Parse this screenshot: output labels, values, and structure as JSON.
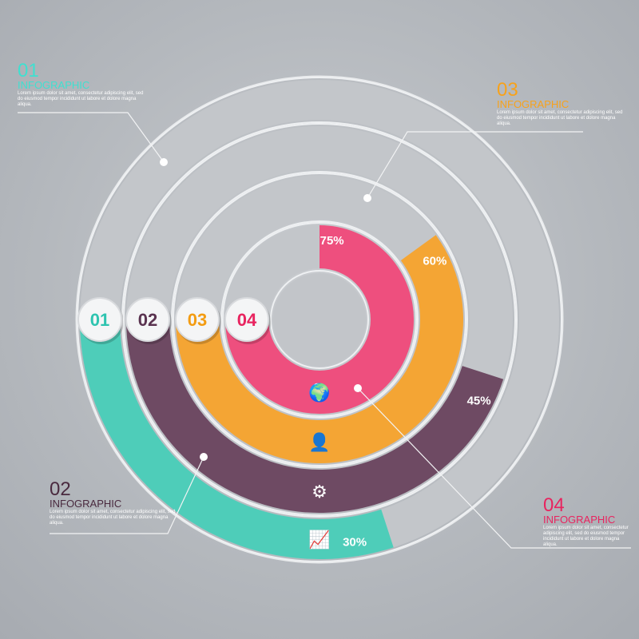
{
  "colors": {
    "ring1": "#4ecdb9",
    "ring2": "#6e4a63",
    "ring3": "#f4a534",
    "ring4": "#ee4f7e",
    "track": "#c3c6ca"
  },
  "rings": [
    {
      "badge": "01",
      "percent": 30,
      "label": "30%",
      "icon": "growth-chart-icon"
    },
    {
      "badge": "02",
      "percent": 45,
      "label": "45%",
      "icon": "gears-icon"
    },
    {
      "badge": "03",
      "percent": 60,
      "label": "60%",
      "icon": "person-icon"
    },
    {
      "badge": "04",
      "percent": 75,
      "label": "75%",
      "icon": "world-map-icon"
    }
  ],
  "blocks": [
    {
      "number": "01",
      "title": "INFOGRAPHIC",
      "text": "Lorem ipsum dolor sit amet, consectetur adipiscing elit, sed do eiusmod tempor incididunt ut labore et dolore magna aliqua.",
      "color": "#3fe0d0"
    },
    {
      "number": "02",
      "title": "INFOGRAPHIC",
      "text": "Lorem ipsum dolor sit amet, consectetur adipiscing elit, sed do eiusmod tempor incididunt ut labore et dolore magna aliqua.",
      "color": "#4a2a3f"
    },
    {
      "number": "03",
      "title": "INFOGRAPHIC",
      "text": "Lorem ipsum dolor sit amet, consectetur adipiscing elit, sed do eiusmod tempor incididunt ut labore et dolore magna aliqua.",
      "color": "#f7a21b"
    },
    {
      "number": "04",
      "title": "INFOGRAPHIC",
      "text": "Lorem ipsum dolor sit amet, consectetur adipiscing elit, sed do eiusmod tempor incididunt ut labore et dolore magna aliqua.",
      "color": "#e8245f"
    }
  ]
}
